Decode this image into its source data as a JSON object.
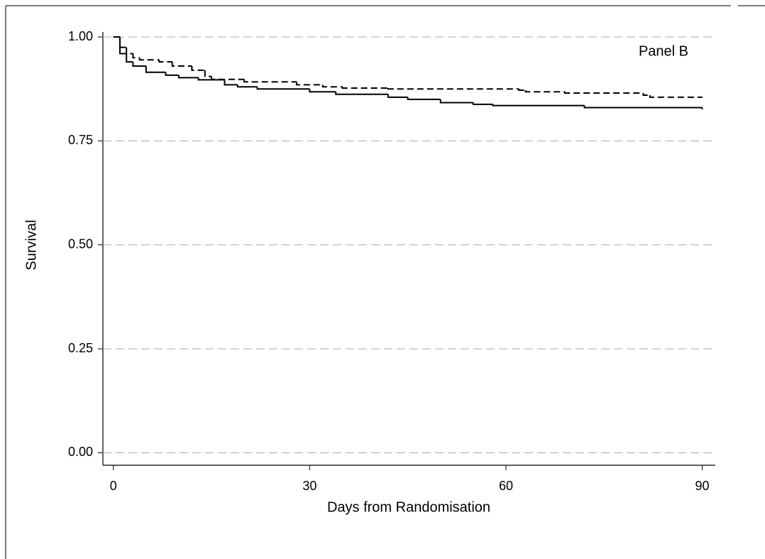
{
  "chart_data": {
    "type": "step",
    "annotation": "Panel B",
    "x_label": "Days from Randomisation",
    "y_label": "Survival",
    "xlim": [
      -1.6,
      92
    ],
    "xticks": [
      0,
      30,
      60,
      90
    ],
    "ylim": [
      -0.03,
      1.012
    ],
    "yticks": [
      {
        "value": 0,
        "label": "0.00"
      },
      {
        "value": 0.25,
        "label": "0.25"
      },
      {
        "value": 0.5,
        "label": "0.50"
      },
      {
        "value": 0.75,
        "label": "0.75"
      },
      {
        "value": 1,
        "label": "1.00"
      }
    ],
    "grid": true,
    "series": [
      {
        "color": "#000000",
        "linestyle": "solid",
        "x": [
          0,
          1,
          2,
          3,
          5,
          8,
          10,
          13,
          17,
          19,
          22,
          30,
          34,
          42,
          45,
          50,
          55,
          58,
          72,
          90
        ],
        "values": [
          1.0,
          0.96,
          0.94,
          0.93,
          0.915,
          0.908,
          0.902,
          0.897,
          0.885,
          0.88,
          0.875,
          0.868,
          0.862,
          0.855,
          0.85,
          0.842,
          0.838,
          0.835,
          0.83,
          0.826
        ]
      },
      {
        "color": "#000000",
        "linestyle": "dashed",
        "x": [
          0,
          1,
          2,
          3,
          4,
          7,
          9,
          12,
          14,
          15,
          20,
          28,
          32,
          35,
          42,
          62,
          63,
          69,
          81,
          82,
          90
        ],
        "values": [
          1.0,
          0.975,
          0.96,
          0.95,
          0.945,
          0.94,
          0.93,
          0.92,
          0.905,
          0.898,
          0.892,
          0.885,
          0.88,
          0.877,
          0.875,
          0.872,
          0.868,
          0.865,
          0.86,
          0.855,
          0.855
        ]
      }
    ]
  }
}
